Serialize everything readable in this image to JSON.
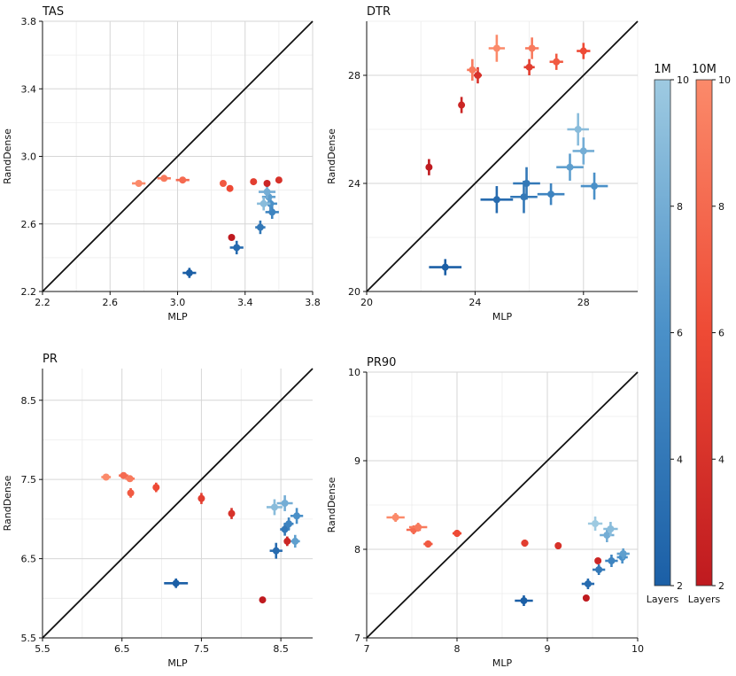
{
  "colors": {
    "blue_dark": "#1b5fa6",
    "blue_light": "#9ecae1",
    "red_dark": "#bf1a1f",
    "red_light": "#fb8a6a",
    "diagonal": "#111111",
    "grid": "#d6d6d6"
  },
  "colorbars": [
    {
      "title": "1M",
      "min": 2,
      "max": 10,
      "ticks": [
        2,
        4,
        6,
        8,
        10
      ],
      "label": "Layers",
      "palette": "blue"
    },
    {
      "title": "10M",
      "min": 2,
      "max": 10,
      "ticks": [
        2,
        4,
        6,
        8,
        10
      ],
      "label": "Layers",
      "palette": "red"
    }
  ],
  "chart_data": [
    {
      "type": "scatter",
      "title": "TAS",
      "xlabel": "MLP",
      "ylabel": "RandDense",
      "xlim": [
        2.2,
        3.8
      ],
      "ylim": [
        2.2,
        3.8
      ],
      "xticks": [
        2.2,
        2.6,
        3.0,
        3.4,
        3.8
      ],
      "yticks": [
        2.2,
        2.6,
        3.0,
        3.4,
        3.8
      ],
      "xticklabels": [
        "2.2",
        "2.6",
        "3.0",
        "3.4",
        "3.8"
      ],
      "yticklabels": [
        "2.2",
        "2.6",
        "3.0",
        "3.4",
        "3.8"
      ],
      "minor_x": [
        2.4,
        2.8,
        3.2,
        3.6
      ],
      "minor_y": [
        2.4,
        2.8,
        3.2,
        3.6
      ],
      "series": [
        {
          "name": "1M",
          "palette": "blue",
          "points": [
            {
              "x": 3.07,
              "y": 2.31,
              "xerr": 0.04,
              "yerr": 0.03,
              "layers": 2
            },
            {
              "x": 3.35,
              "y": 2.46,
              "xerr": 0.04,
              "yerr": 0.04,
              "layers": 3
            },
            {
              "x": 3.49,
              "y": 2.58,
              "xerr": 0.03,
              "yerr": 0.04,
              "layers": 4
            },
            {
              "x": 3.56,
              "y": 2.67,
              "xerr": 0.04,
              "yerr": 0.04,
              "layers": 5
            },
            {
              "x": 3.55,
              "y": 2.72,
              "xerr": 0.04,
              "yerr": 0.04,
              "layers": 6
            },
            {
              "x": 3.54,
              "y": 2.76,
              "xerr": 0.04,
              "yerr": 0.04,
              "layers": 7
            },
            {
              "x": 3.51,
              "y": 2.72,
              "xerr": 0.04,
              "yerr": 0.04,
              "layers": 9
            },
            {
              "x": 3.53,
              "y": 2.79,
              "xerr": 0.05,
              "yerr": 0.04,
              "layers": 8
            }
          ]
        },
        {
          "name": "10M",
          "palette": "red",
          "points": [
            {
              "x": 3.32,
              "y": 2.52,
              "xerr": 0,
              "yerr": 0,
              "layers": 2
            },
            {
              "x": 3.53,
              "y": 2.84,
              "xerr": 0,
              "yerr": 0,
              "layers": 3
            },
            {
              "x": 3.6,
              "y": 2.86,
              "xerr": 0,
              "yerr": 0,
              "layers": 4
            },
            {
              "x": 3.45,
              "y": 2.85,
              "xerr": 0,
              "yerr": 0,
              "layers": 5
            },
            {
              "x": 3.31,
              "y": 2.81,
              "xerr": 0,
              "yerr": 0,
              "layers": 6
            },
            {
              "x": 3.27,
              "y": 2.84,
              "xerr": 0,
              "yerr": 0,
              "layers": 7
            },
            {
              "x": 3.03,
              "y": 2.86,
              "xerr": 0.04,
              "yerr": 0.01,
              "layers": 8
            },
            {
              "x": 2.92,
              "y": 2.87,
              "xerr": 0.04,
              "yerr": 0.01,
              "layers": 9
            },
            {
              "x": 2.77,
              "y": 2.84,
              "xerr": 0.04,
              "yerr": 0.01,
              "layers": 10
            }
          ]
        }
      ]
    },
    {
      "type": "scatter",
      "title": "DTR",
      "xlabel": "MLP",
      "ylabel": "RandDense",
      "xlim": [
        20,
        30
      ],
      "ylim": [
        20,
        30
      ],
      "xticks": [
        20,
        24,
        28
      ],
      "yticks": [
        20,
        24,
        28
      ],
      "xticklabels": [
        "20",
        "24",
        "28"
      ],
      "yticklabels": [
        "20",
        "24",
        "28"
      ],
      "minor_x": [
        22,
        26,
        30
      ],
      "minor_y": [
        22,
        26,
        30
      ],
      "series": [
        {
          "name": "1M",
          "palette": "blue",
          "points": [
            {
              "x": 22.9,
              "y": 20.9,
              "xerr": 0.6,
              "yerr": 0.3,
              "layers": 2
            },
            {
              "x": 24.8,
              "y": 23.4,
              "xerr": 0.6,
              "yerr": 0.5,
              "layers": 3
            },
            {
              "x": 25.8,
              "y": 23.5,
              "xerr": 0.5,
              "yerr": 0.6,
              "layers": 4
            },
            {
              "x": 25.9,
              "y": 24.0,
              "xerr": 0.5,
              "yerr": 0.6,
              "layers": 4
            },
            {
              "x": 26.8,
              "y": 23.6,
              "xerr": 0.5,
              "yerr": 0.4,
              "layers": 5
            },
            {
              "x": 28.4,
              "y": 23.9,
              "xerr": 0.5,
              "yerr": 0.5,
              "layers": 6
            },
            {
              "x": 27.5,
              "y": 24.6,
              "xerr": 0.5,
              "yerr": 0.5,
              "layers": 7
            },
            {
              "x": 28.0,
              "y": 25.2,
              "xerr": 0.4,
              "yerr": 0.5,
              "layers": 8
            },
            {
              "x": 27.8,
              "y": 26.0,
              "xerr": 0.4,
              "yerr": 0.6,
              "layers": 9
            }
          ]
        },
        {
          "name": "10M",
          "palette": "red",
          "points": [
            {
              "x": 22.3,
              "y": 24.6,
              "xerr": 0,
              "yerr": 0.3,
              "layers": 2
            },
            {
              "x": 23.5,
              "y": 26.9,
              "xerr": 0.1,
              "yerr": 0.3,
              "layers": 3
            },
            {
              "x": 24.1,
              "y": 28.0,
              "xerr": 0.15,
              "yerr": 0.3,
              "layers": 4
            },
            {
              "x": 26.0,
              "y": 28.3,
              "xerr": 0.2,
              "yerr": 0.3,
              "layers": 5
            },
            {
              "x": 28.0,
              "y": 28.9,
              "xerr": 0.25,
              "yerr": 0.3,
              "layers": 6
            },
            {
              "x": 27.0,
              "y": 28.5,
              "xerr": 0.25,
              "yerr": 0.3,
              "layers": 7
            },
            {
              "x": 23.9,
              "y": 28.2,
              "xerr": 0.2,
              "yerr": 0.4,
              "layers": 9
            },
            {
              "x": 26.1,
              "y": 29.0,
              "xerr": 0.25,
              "yerr": 0.4,
              "layers": 9
            },
            {
              "x": 24.8,
              "y": 29.0,
              "xerr": 0.3,
              "yerr": 0.5,
              "layers": 10
            }
          ]
        }
      ]
    },
    {
      "type": "scatter",
      "title": "PR",
      "xlabel": "MLP",
      "ylabel": "RandDense",
      "xlim": [
        5.5,
        8.9
      ],
      "ylim": [
        5.5,
        8.9
      ],
      "xticks": [
        5.5,
        6.5,
        7.5,
        8.5
      ],
      "yticks": [
        5.5,
        6.5,
        7.5,
        8.5
      ],
      "xticklabels": [
        "5.5",
        "6.5",
        "7.5",
        "8.5"
      ],
      "yticklabels": [
        "5.5",
        "6.5",
        "7.5",
        "8.5"
      ],
      "minor_x": [
        6.0,
        7.0,
        8.0
      ],
      "minor_y": [
        6.0,
        7.0,
        8.0
      ],
      "series": [
        {
          "name": "1M",
          "palette": "blue",
          "points": [
            {
              "x": 7.18,
              "y": 6.19,
              "xerr": 0.15,
              "yerr": 0.06,
              "layers": 2
            },
            {
              "x": 8.44,
              "y": 6.6,
              "xerr": 0.08,
              "yerr": 0.1,
              "layers": 3
            },
            {
              "x": 8.55,
              "y": 6.87,
              "xerr": 0.06,
              "yerr": 0.08,
              "layers": 4
            },
            {
              "x": 8.6,
              "y": 6.94,
              "xerr": 0.06,
              "yerr": 0.08,
              "layers": 5
            },
            {
              "x": 8.7,
              "y": 7.04,
              "xerr": 0.08,
              "yerr": 0.1,
              "layers": 6
            },
            {
              "x": 8.68,
              "y": 6.72,
              "xerr": 0.06,
              "yerr": 0.08,
              "layers": 7
            },
            {
              "x": 8.55,
              "y": 7.2,
              "xerr": 0.1,
              "yerr": 0.1,
              "layers": 8
            },
            {
              "x": 8.42,
              "y": 7.15,
              "xerr": 0.1,
              "yerr": 0.1,
              "layers": 9
            }
          ]
        },
        {
          "name": "10M",
          "palette": "red",
          "points": [
            {
              "x": 8.27,
              "y": 5.98,
              "xerr": 0,
              "yerr": 0,
              "layers": 2
            },
            {
              "x": 8.58,
              "y": 6.72,
              "xerr": 0,
              "yerr": 0.06,
              "layers": 3
            },
            {
              "x": 7.88,
              "y": 7.07,
              "xerr": 0.02,
              "yerr": 0.07,
              "layers": 4
            },
            {
              "x": 7.5,
              "y": 7.26,
              "xerr": 0.04,
              "yerr": 0.07,
              "layers": 5
            },
            {
              "x": 6.93,
              "y": 7.4,
              "xerr": 0.04,
              "yerr": 0.06,
              "layers": 6
            },
            {
              "x": 6.61,
              "y": 7.33,
              "xerr": 0.04,
              "yerr": 0.06,
              "layers": 7
            },
            {
              "x": 6.52,
              "y": 7.55,
              "xerr": 0.06,
              "yerr": 0.04,
              "layers": 8
            },
            {
              "x": 6.6,
              "y": 7.51,
              "xerr": 0.06,
              "yerr": 0.04,
              "layers": 9
            },
            {
              "x": 6.3,
              "y": 7.53,
              "xerr": 0.06,
              "yerr": 0.03,
              "layers": 10
            }
          ]
        }
      ]
    },
    {
      "type": "scatter",
      "title": "PR90",
      "xlabel": "MLP",
      "ylabel": "RandDense",
      "xlim": [
        7,
        10
      ],
      "ylim": [
        7,
        10
      ],
      "xticks": [
        7,
        8,
        9,
        10
      ],
      "yticks": [
        7,
        8,
        9,
        10
      ],
      "xticklabels": [
        "7",
        "8",
        "9",
        "10"
      ],
      "yticklabels": [
        "7",
        "8",
        "9",
        "10"
      ],
      "minor_x": [
        7.5,
        8.5,
        9.5
      ],
      "minor_y": [
        7.5,
        8.5,
        9.5
      ],
      "series": [
        {
          "name": "1M",
          "palette": "blue",
          "points": [
            {
              "x": 8.74,
              "y": 7.42,
              "xerr": 0.1,
              "yerr": 0.06,
              "layers": 2
            },
            {
              "x": 9.45,
              "y": 7.61,
              "xerr": 0.07,
              "yerr": 0.06,
              "layers": 3
            },
            {
              "x": 9.57,
              "y": 7.77,
              "xerr": 0.07,
              "yerr": 0.06,
              "layers": 4
            },
            {
              "x": 9.71,
              "y": 7.87,
              "xerr": 0.07,
              "yerr": 0.07,
              "layers": 5
            },
            {
              "x": 9.83,
              "y": 7.91,
              "xerr": 0.06,
              "yerr": 0.07,
              "layers": 6
            },
            {
              "x": 9.84,
              "y": 7.95,
              "xerr": 0.07,
              "yerr": 0.06,
              "layers": 7
            },
            {
              "x": 9.66,
              "y": 8.16,
              "xerr": 0.08,
              "yerr": 0.08,
              "layers": 8
            },
            {
              "x": 9.7,
              "y": 8.23,
              "xerr": 0.08,
              "yerr": 0.08,
              "layers": 9
            },
            {
              "x": 9.53,
              "y": 8.29,
              "xerr": 0.08,
              "yerr": 0.08,
              "layers": 10
            }
          ]
        },
        {
          "name": "10M",
          "palette": "red",
          "points": [
            {
              "x": 9.43,
              "y": 7.45,
              "xerr": 0,
              "yerr": 0,
              "layers": 2
            },
            {
              "x": 9.56,
              "y": 7.87,
              "xerr": 0,
              "yerr": 0,
              "layers": 3
            },
            {
              "x": 9.12,
              "y": 8.04,
              "xerr": 0.02,
              "yerr": 0.04,
              "layers": 4
            },
            {
              "x": 8.75,
              "y": 8.07,
              "xerr": 0.04,
              "yerr": 0.04,
              "layers": 5
            },
            {
              "x": 8.0,
              "y": 8.18,
              "xerr": 0.05,
              "yerr": 0.04,
              "layers": 6
            },
            {
              "x": 7.68,
              "y": 8.06,
              "xerr": 0.05,
              "yerr": 0.04,
              "layers": 7
            },
            {
              "x": 7.52,
              "y": 8.22,
              "xerr": 0.08,
              "yerr": 0.05,
              "layers": 8
            },
            {
              "x": 7.57,
              "y": 8.25,
              "xerr": 0.1,
              "yerr": 0.05,
              "layers": 9
            },
            {
              "x": 7.32,
              "y": 8.36,
              "xerr": 0.1,
              "yerr": 0.05,
              "layers": 10
            }
          ]
        }
      ]
    }
  ]
}
